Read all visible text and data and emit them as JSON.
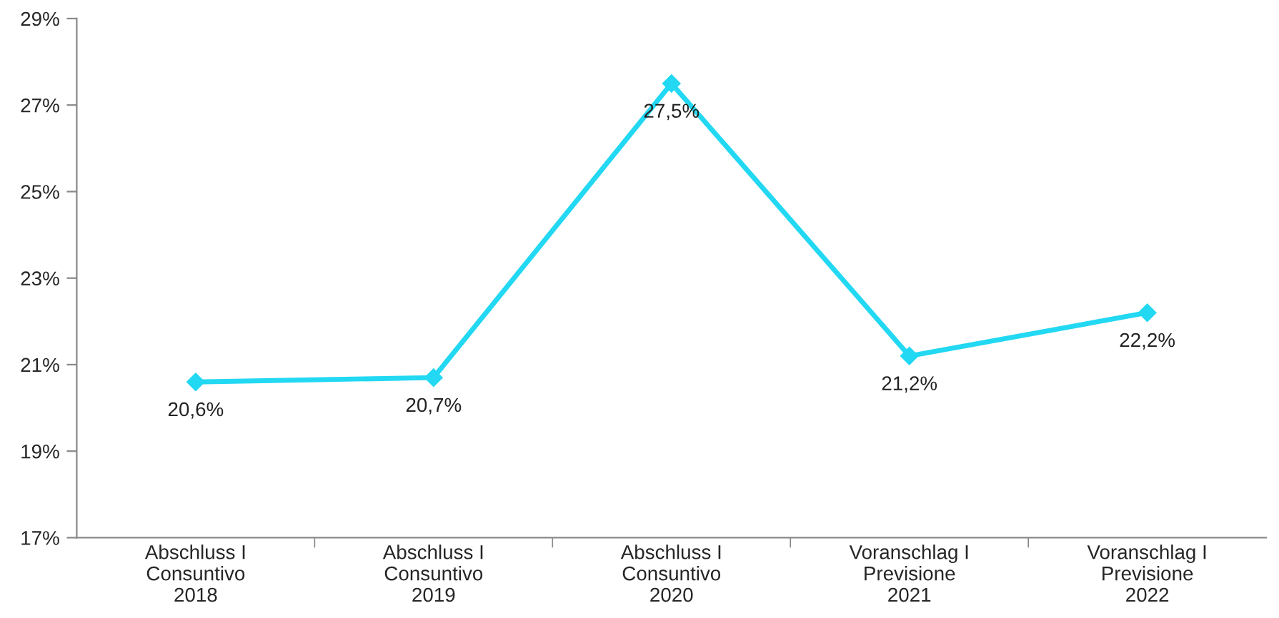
{
  "chart_data": {
    "type": "line",
    "categories": [
      "Abschluss I\nConsuntivo\n2018",
      "Abschluss I\nConsuntivo\n2019",
      "Abschluss I\nConsuntivo\n2020",
      "Voranschlag I\nPrevisione\n2021",
      "Voranschlag I\nPrevisione\n2022"
    ],
    "series": [
      {
        "color": "#22d8f2",
        "values": [
          20.6,
          20.7,
          27.5,
          21.2,
          22.2
        ],
        "value_labels": [
          "20,6%",
          "20,7%",
          "27,5%",
          "21,2%",
          "22,2%"
        ]
      }
    ],
    "ylim": [
      17,
      29
    ],
    "yticks": [
      {
        "value": 17,
        "label": "17%"
      },
      {
        "value": 19,
        "label": "19%"
      },
      {
        "value": 21,
        "label": "21%"
      },
      {
        "value": 23,
        "label": "23%"
      },
      {
        "value": 25,
        "label": "25%"
      },
      {
        "value": 27,
        "label": "27%"
      },
      {
        "value": 29,
        "label": "29%"
      }
    ],
    "grid": false,
    "legend": false,
    "marker": "diamond",
    "line_style": "solid"
  }
}
